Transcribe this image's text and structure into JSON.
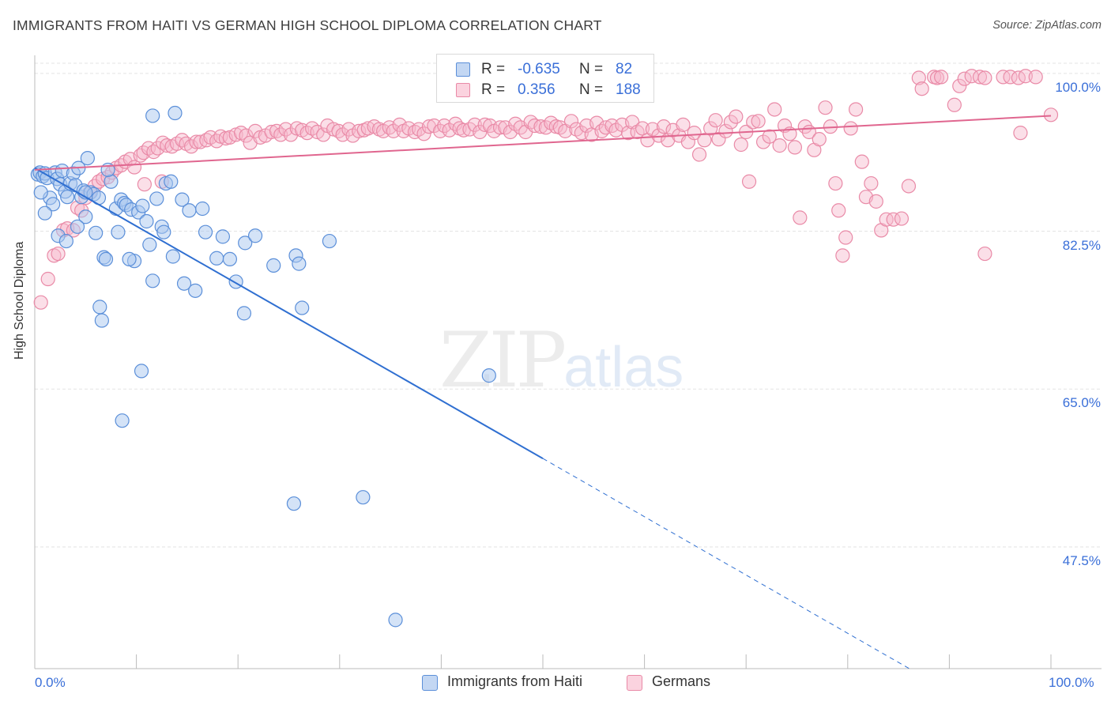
{
  "header": {
    "title": "IMMIGRANTS FROM HAITI VS GERMAN HIGH SCHOOL DIPLOMA CORRELATION CHART",
    "source": "Source: ZipAtlas.com"
  },
  "watermark": {
    "main": "ZIP",
    "sub": "atlas"
  },
  "legend_top": {
    "rows": [
      {
        "r_label": "R =",
        "r_value": "-0.635",
        "n_label": "N =",
        "n_value": "82"
      },
      {
        "r_label": "R =",
        "r_value": "0.356",
        "n_label": "N =",
        "n_value": "188"
      }
    ]
  },
  "legend_bottom": {
    "items": [
      {
        "label": "Immigrants from Haiti"
      },
      {
        "label": "Germans"
      }
    ]
  },
  "colors": {
    "haiti_fill": "#a9c7f0",
    "haiti_stroke": "#5b8fd9",
    "haiti_line": "#2f6fd1",
    "german_fill": "#f6b8cb",
    "german_stroke": "#e98aa7",
    "german_line": "#e0668f",
    "axis_text": "#3a6fd8",
    "grid": "#e3e3e3"
  },
  "chart_data": {
    "type": "scatter",
    "title": "IMMIGRANTS FROM HAITI VS GERMAN HIGH SCHOOL DIPLOMA CORRELATION CHART",
    "xlabel": "",
    "ylabel": "High School Diploma",
    "xlim": [
      0,
      100
    ],
    "ylim": [
      34,
      102
    ],
    "x_tick_labels": [
      "0.0%",
      "100.0%"
    ],
    "y_ticks": [
      100.0,
      82.5,
      65.0,
      47.5
    ],
    "y_tick_labels": [
      "100.0%",
      "82.5%",
      "65.0%",
      "47.5%"
    ],
    "grid": true,
    "legend": "top-center",
    "series": [
      {
        "name": "Immigrants from Haiti",
        "R": -0.635,
        "N": 82,
        "trend": {
          "x0": 0,
          "y0": 89.5,
          "x1": 50,
          "y1": 57.3,
          "dashed_to_x": 100,
          "dashed_to_y": 25.0
        },
        "points": [
          [
            0.3,
            88.8
          ],
          [
            0.5,
            89.0
          ],
          [
            0.8,
            88.6
          ],
          [
            1.0,
            88.9
          ],
          [
            1.2,
            88.4
          ],
          [
            1.5,
            86.2
          ],
          [
            1.8,
            85.5
          ],
          [
            2.0,
            89.0
          ],
          [
            2.2,
            88.3
          ],
          [
            2.5,
            87.7
          ],
          [
            2.7,
            89.2
          ],
          [
            3.0,
            86.9
          ],
          [
            3.2,
            86.3
          ],
          [
            3.5,
            87.8
          ],
          [
            3.8,
            88.9
          ],
          [
            4.0,
            87.6
          ],
          [
            4.3,
            89.5
          ],
          [
            4.6,
            86.3
          ],
          [
            4.8,
            87.0
          ],
          [
            5.0,
            84.1
          ],
          [
            5.2,
            90.6
          ],
          [
            5.5,
            86.8
          ],
          [
            5.8,
            86.6
          ],
          [
            6.0,
            82.3
          ],
          [
            6.3,
            86.2
          ],
          [
            6.8,
            79.6
          ],
          [
            7.0,
            79.4
          ],
          [
            7.5,
            88.0
          ],
          [
            8.0,
            85.0
          ],
          [
            8.2,
            82.4
          ],
          [
            8.5,
            86.0
          ],
          [
            8.8,
            85.6
          ],
          [
            9.0,
            85.4
          ],
          [
            9.5,
            84.9
          ],
          [
            9.8,
            79.2
          ],
          [
            10.2,
            84.6
          ],
          [
            10.6,
            85.3
          ],
          [
            11.0,
            83.6
          ],
          [
            11.3,
            81.0
          ],
          [
            11.6,
            77.0
          ],
          [
            12.0,
            86.1
          ],
          [
            12.5,
            83.0
          ],
          [
            12.7,
            82.4
          ],
          [
            12.9,
            87.8
          ],
          [
            13.4,
            88.0
          ],
          [
            13.6,
            79.7
          ],
          [
            14.5,
            86.0
          ],
          [
            14.7,
            76.7
          ],
          [
            15.2,
            84.8
          ],
          [
            15.8,
            75.9
          ],
          [
            16.5,
            85.0
          ],
          [
            16.8,
            82.4
          ],
          [
            17.9,
            79.5
          ],
          [
            18.5,
            81.9
          ],
          [
            19.2,
            79.4
          ],
          [
            19.8,
            76.9
          ],
          [
            20.6,
            73.4
          ],
          [
            20.7,
            81.2
          ],
          [
            21.7,
            82.0
          ],
          [
            23.5,
            78.7
          ],
          [
            25.7,
            79.8
          ],
          [
            26.0,
            78.9
          ],
          [
            26.3,
            74.0
          ],
          [
            29.0,
            81.4
          ],
          [
            4.2,
            83.0
          ],
          [
            2.3,
            82.0
          ],
          [
            3.1,
            81.4
          ],
          [
            6.4,
            74.1
          ],
          [
            6.6,
            72.6
          ],
          [
            11.6,
            95.3
          ],
          [
            13.8,
            95.6
          ],
          [
            10.5,
            67.0
          ],
          [
            8.6,
            61.5
          ],
          [
            44.7,
            66.5
          ],
          [
            32.3,
            53.0
          ],
          [
            25.5,
            52.3
          ],
          [
            35.5,
            39.4
          ],
          [
            5.0,
            86.8
          ],
          [
            1.0,
            84.5
          ],
          [
            0.6,
            86.8
          ],
          [
            9.3,
            79.4
          ],
          [
            7.2,
            89.3
          ]
        ]
      },
      {
        "name": "Germans",
        "R": 0.356,
        "N": 188,
        "trend": {
          "x0": 0,
          "y0": 89.3,
          "x1": 100,
          "y1": 95.3
        },
        "points": [
          [
            0.6,
            74.6
          ],
          [
            1.3,
            77.2
          ],
          [
            1.9,
            79.8
          ],
          [
            2.3,
            80.0
          ],
          [
            2.8,
            82.6
          ],
          [
            3.2,
            82.8
          ],
          [
            3.8,
            82.6
          ],
          [
            4.2,
            85.1
          ],
          [
            4.6,
            84.8
          ],
          [
            5.0,
            86.2
          ],
          [
            5.4,
            86.8
          ],
          [
            5.9,
            87.5
          ],
          [
            6.3,
            88.0
          ],
          [
            6.7,
            88.3
          ],
          [
            7.2,
            88.5
          ],
          [
            7.6,
            89.0
          ],
          [
            8.0,
            89.5
          ],
          [
            8.5,
            89.8
          ],
          [
            8.9,
            90.2
          ],
          [
            9.4,
            90.5
          ],
          [
            9.8,
            89.6
          ],
          [
            10.4,
            90.9
          ],
          [
            10.7,
            91.2
          ],
          [
            11.2,
            91.7
          ],
          [
            11.7,
            91.3
          ],
          [
            12.1,
            91.7
          ],
          [
            12.6,
            92.3
          ],
          [
            13.0,
            92.0
          ],
          [
            13.5,
            91.9
          ],
          [
            14.0,
            92.2
          ],
          [
            14.5,
            92.6
          ],
          [
            14.9,
            92.2
          ],
          [
            15.4,
            91.9
          ],
          [
            15.9,
            92.4
          ],
          [
            16.3,
            92.4
          ],
          [
            16.9,
            92.6
          ],
          [
            17.3,
            92.9
          ],
          [
            17.9,
            92.5
          ],
          [
            18.3,
            93.0
          ],
          [
            18.8,
            92.8
          ],
          [
            19.2,
            92.9
          ],
          [
            19.8,
            93.2
          ],
          [
            20.3,
            93.4
          ],
          [
            20.8,
            93.1
          ],
          [
            21.2,
            92.3
          ],
          [
            21.7,
            93.6
          ],
          [
            22.2,
            92.9
          ],
          [
            22.7,
            93.1
          ],
          [
            23.3,
            93.5
          ],
          [
            23.8,
            93.6
          ],
          [
            24.2,
            93.2
          ],
          [
            24.7,
            93.8
          ],
          [
            25.2,
            93.2
          ],
          [
            25.8,
            93.9
          ],
          [
            26.3,
            93.7
          ],
          [
            26.8,
            93.4
          ],
          [
            27.3,
            93.9
          ],
          [
            27.8,
            93.5
          ],
          [
            28.4,
            93.2
          ],
          [
            28.8,
            94.2
          ],
          [
            29.4,
            93.8
          ],
          [
            29.9,
            93.6
          ],
          [
            30.3,
            93.2
          ],
          [
            30.9,
            93.8
          ],
          [
            31.3,
            93.1
          ],
          [
            31.9,
            93.6
          ],
          [
            32.4,
            93.7
          ],
          [
            32.8,
            93.9
          ],
          [
            33.4,
            94.1
          ],
          [
            33.9,
            93.8
          ],
          [
            34.3,
            93.6
          ],
          [
            34.9,
            94.0
          ],
          [
            35.3,
            93.6
          ],
          [
            35.9,
            94.3
          ],
          [
            36.3,
            93.6
          ],
          [
            36.8,
            93.9
          ],
          [
            37.4,
            93.5
          ],
          [
            37.8,
            93.8
          ],
          [
            38.3,
            93.3
          ],
          [
            38.8,
            94.1
          ],
          [
            39.3,
            94.2
          ],
          [
            39.9,
            93.6
          ],
          [
            40.3,
            94.2
          ],
          [
            40.8,
            93.7
          ],
          [
            41.4,
            94.4
          ],
          [
            41.8,
            93.9
          ],
          [
            42.2,
            93.7
          ],
          [
            42.8,
            93.8
          ],
          [
            43.3,
            94.3
          ],
          [
            43.8,
            93.5
          ],
          [
            44.3,
            94.3
          ],
          [
            44.8,
            94.2
          ],
          [
            45.2,
            93.6
          ],
          [
            45.8,
            94.0
          ],
          [
            46.3,
            94.0
          ],
          [
            46.8,
            93.5
          ],
          [
            47.3,
            94.4
          ],
          [
            47.8,
            94.0
          ],
          [
            48.3,
            93.5
          ],
          [
            48.8,
            94.6
          ],
          [
            49.2,
            94.2
          ],
          [
            49.8,
            94.1
          ],
          [
            50.3,
            94.0
          ],
          [
            50.8,
            94.5
          ],
          [
            51.3,
            94.1
          ],
          [
            51.7,
            94.0
          ],
          [
            52.2,
            93.6
          ],
          [
            52.8,
            94.7
          ],
          [
            53.3,
            93.8
          ],
          [
            53.8,
            93.4
          ],
          [
            54.3,
            94.2
          ],
          [
            54.8,
            93.2
          ],
          [
            55.3,
            94.5
          ],
          [
            55.8,
            93.6
          ],
          [
            56.2,
            94.0
          ],
          [
            56.8,
            94.2
          ],
          [
            57.2,
            93.7
          ],
          [
            57.8,
            94.3
          ],
          [
            58.4,
            93.4
          ],
          [
            58.8,
            94.6
          ],
          [
            59.3,
            93.5
          ],
          [
            59.8,
            93.9
          ],
          [
            60.3,
            92.6
          ],
          [
            60.8,
            93.8
          ],
          [
            61.4,
            93.1
          ],
          [
            61.9,
            94.1
          ],
          [
            62.3,
            92.6
          ],
          [
            62.8,
            93.7
          ],
          [
            63.4,
            93.1
          ],
          [
            63.8,
            94.3
          ],
          [
            64.3,
            92.4
          ],
          [
            64.9,
            93.4
          ],
          [
            65.4,
            91.0
          ],
          [
            65.9,
            92.6
          ],
          [
            66.5,
            93.9
          ],
          [
            67.0,
            94.8
          ],
          [
            67.3,
            92.7
          ],
          [
            68.0,
            93.6
          ],
          [
            68.5,
            94.6
          ],
          [
            69.0,
            95.2
          ],
          [
            69.5,
            92.1
          ],
          [
            70.0,
            93.5
          ],
          [
            70.3,
            88.0
          ],
          [
            70.7,
            94.6
          ],
          [
            71.2,
            94.7
          ],
          [
            71.7,
            92.4
          ],
          [
            72.3,
            93.0
          ],
          [
            72.8,
            96.0
          ],
          [
            73.3,
            92.0
          ],
          [
            73.8,
            94.2
          ],
          [
            74.3,
            93.3
          ],
          [
            74.8,
            91.8
          ],
          [
            75.3,
            84.0
          ],
          [
            75.8,
            94.1
          ],
          [
            76.2,
            93.5
          ],
          [
            76.7,
            91.5
          ],
          [
            77.2,
            92.7
          ],
          [
            77.8,
            96.2
          ],
          [
            78.3,
            94.1
          ],
          [
            78.8,
            87.8
          ],
          [
            79.1,
            84.8
          ],
          [
            79.5,
            79.8
          ],
          [
            79.8,
            81.8
          ],
          [
            80.3,
            93.9
          ],
          [
            80.8,
            96.0
          ],
          [
            81.4,
            90.2
          ],
          [
            81.8,
            86.3
          ],
          [
            82.3,
            87.8
          ],
          [
            82.8,
            85.8
          ],
          [
            83.3,
            82.6
          ],
          [
            83.8,
            83.8
          ],
          [
            84.5,
            83.8
          ],
          [
            85.3,
            83.9
          ],
          [
            86.0,
            87.5
          ],
          [
            87.0,
            99.5
          ],
          [
            87.3,
            98.3
          ],
          [
            88.5,
            99.6
          ],
          [
            88.8,
            99.5
          ],
          [
            89.2,
            99.6
          ],
          [
            90.5,
            96.5
          ],
          [
            91.0,
            98.6
          ],
          [
            91.5,
            99.4
          ],
          [
            92.2,
            99.7
          ],
          [
            93.0,
            99.6
          ],
          [
            93.5,
            99.5
          ],
          [
            95.3,
            99.6
          ],
          [
            96.0,
            99.6
          ],
          [
            96.8,
            99.5
          ],
          [
            97.5,
            99.7
          ],
          [
            98.5,
            99.6
          ],
          [
            100.0,
            95.4
          ],
          [
            93.5,
            80.0
          ],
          [
            97.0,
            93.4
          ],
          [
            12.5,
            88.0
          ],
          [
            10.8,
            87.7
          ]
        ]
      }
    ]
  }
}
